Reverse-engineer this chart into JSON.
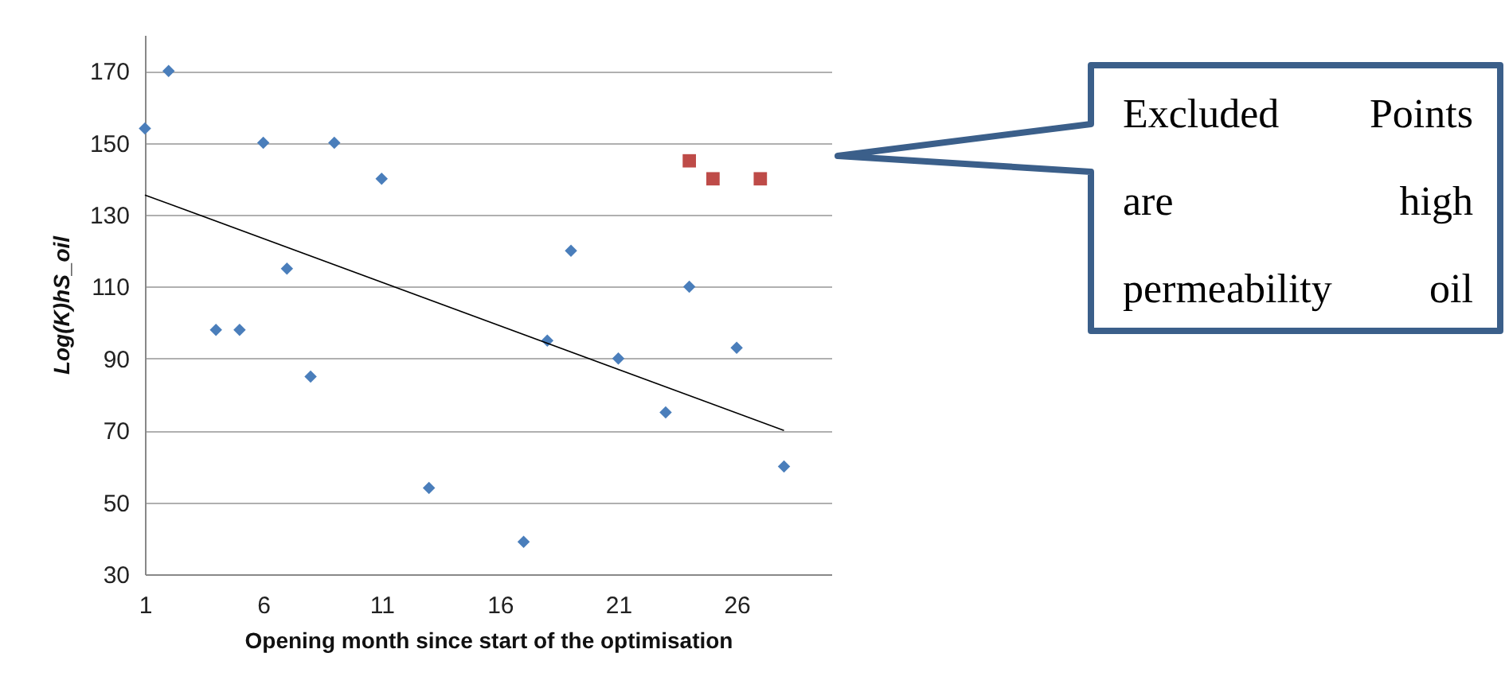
{
  "chart_data": {
    "type": "scatter",
    "xlabel": "Opening month since start of the optimisation",
    "ylabel": "Log(K)hS_oil",
    "xlim": [
      1,
      30
    ],
    "xticks": [
      1,
      6,
      11,
      16,
      21,
      26
    ],
    "ylim": [
      30,
      180
    ],
    "yticks": [
      30,
      50,
      70,
      90,
      110,
      130,
      150,
      170
    ],
    "grid": "y",
    "series": [
      {
        "color": "#4a7ebb",
        "marker": "diamond",
        "x": [
          1,
          2,
          4,
          5,
          6,
          7,
          8,
          9,
          11,
          13,
          17,
          18,
          19,
          21,
          23,
          24,
          26,
          28
        ],
        "values": [
          154,
          170,
          98,
          98,
          150,
          115,
          85,
          150,
          140,
          54,
          39,
          95,
          120,
          90,
          75,
          110,
          93,
          60
        ]
      },
      {
        "color": "#be4b48",
        "marker": "square",
        "x": [
          24,
          25,
          27
        ],
        "values": [
          145,
          140,
          140
        ]
      },
      {
        "type": "line",
        "color": "#000000",
        "marker": "none",
        "x": [
          1,
          28
        ],
        "values": [
          135.5,
          70
        ]
      }
    ],
    "annotations": [
      "Excluded Points are high permeability oil"
    ]
  }
}
